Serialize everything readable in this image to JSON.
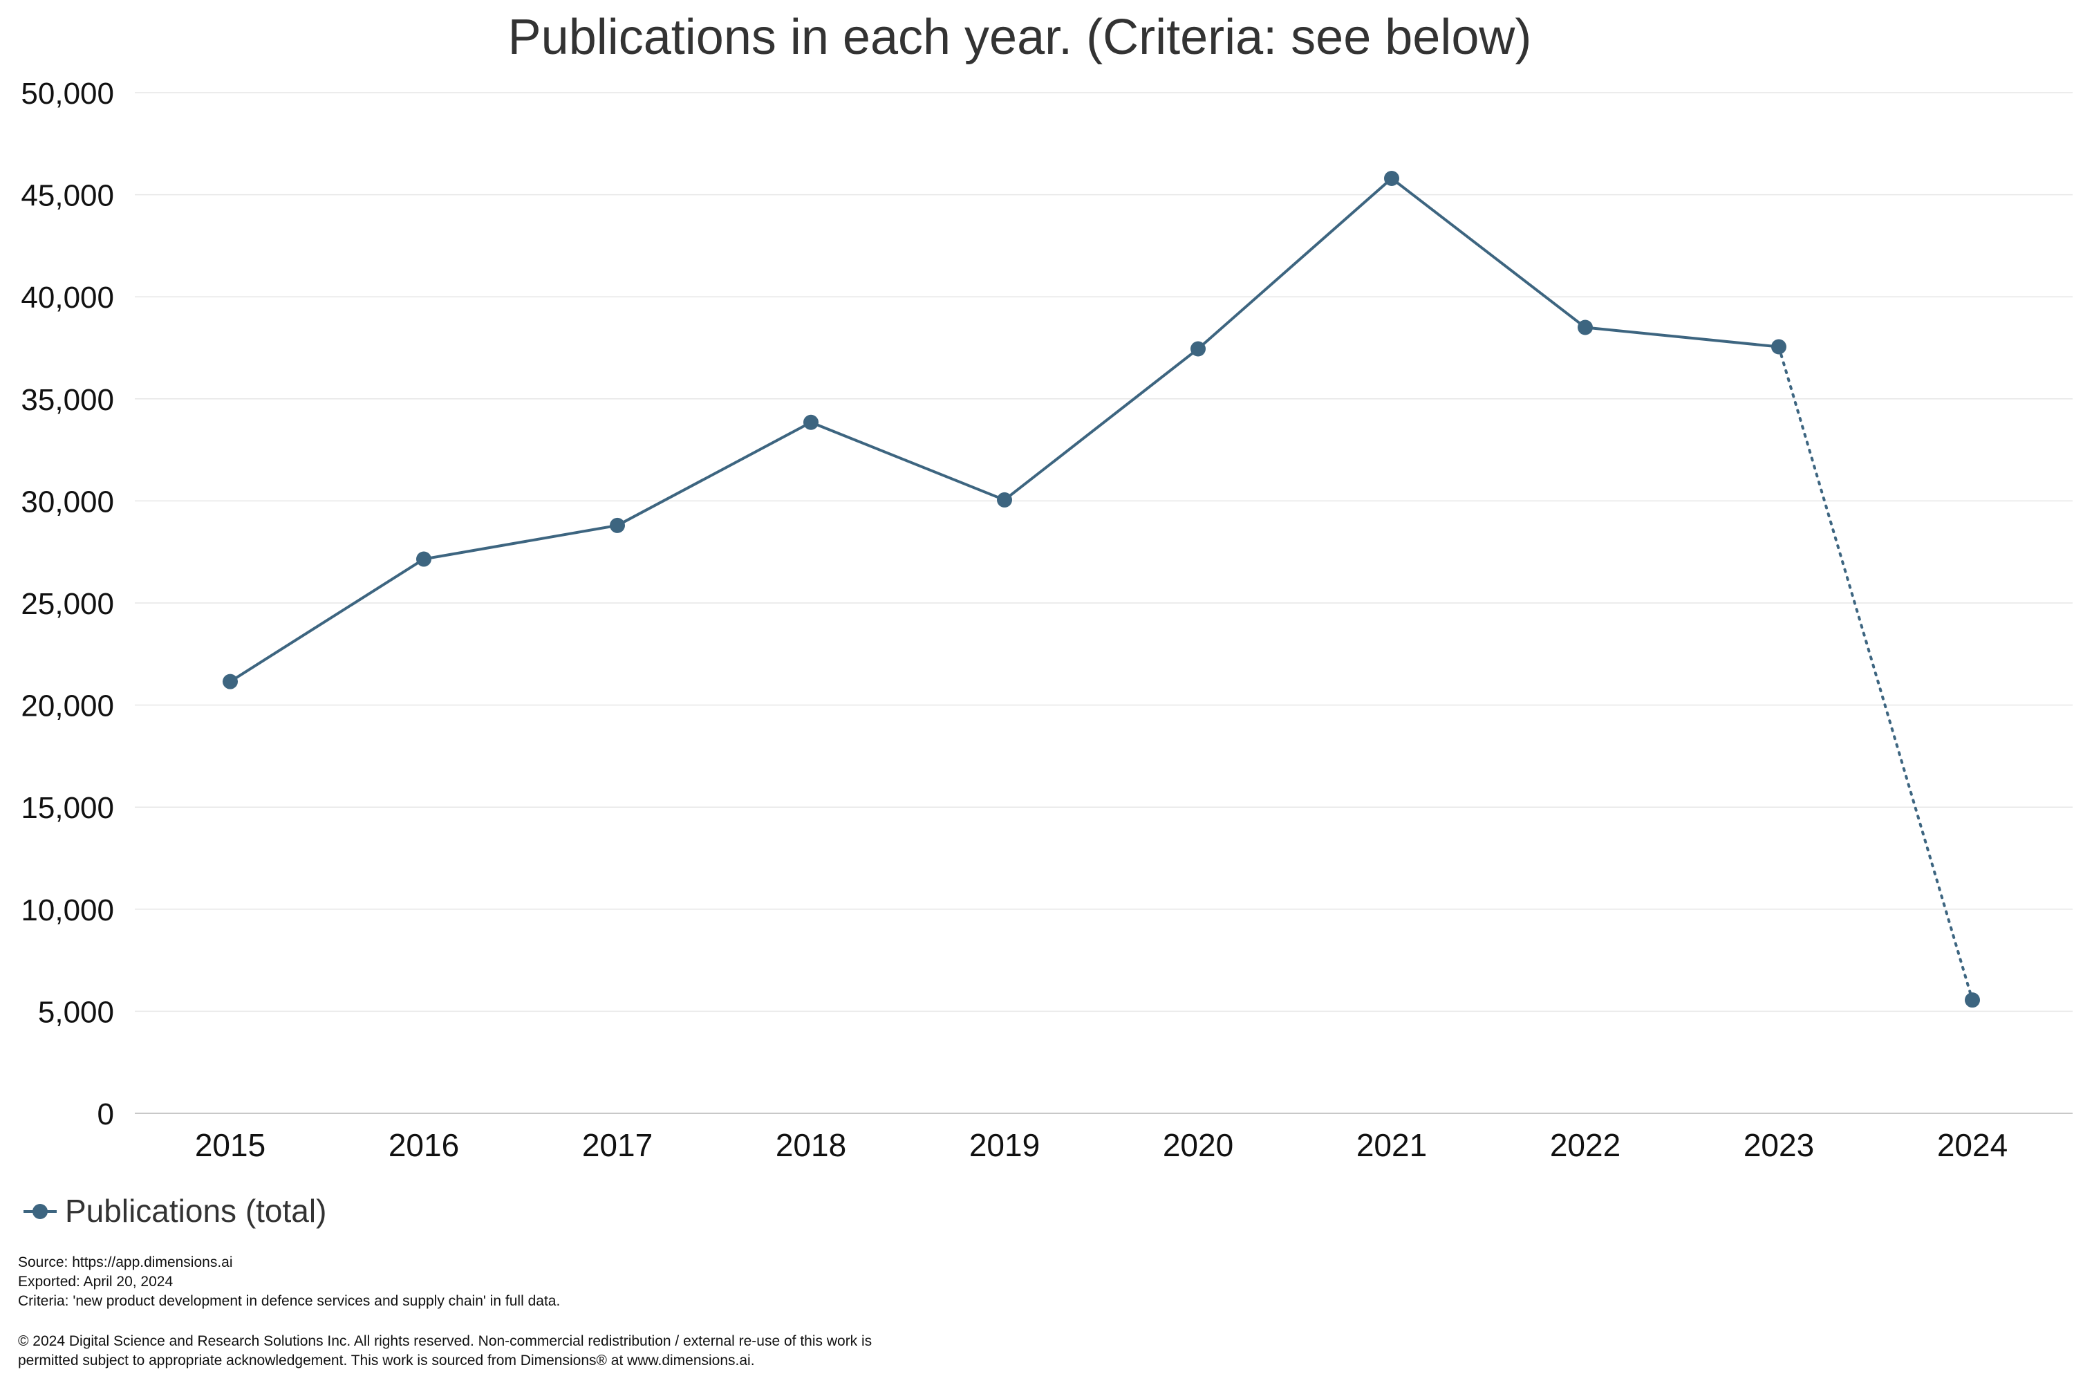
{
  "chart_data": {
    "type": "line",
    "title": "Publications in each year. (Criteria: see below)",
    "xlabel": "",
    "ylabel": "",
    "categories": [
      "2015",
      "2016",
      "2017",
      "2018",
      "2019",
      "2020",
      "2021",
      "2022",
      "2023",
      "2024"
    ],
    "series": [
      {
        "name": "Publications (total)",
        "values": [
          21150,
          27150,
          28800,
          33850,
          30050,
          37450,
          45800,
          38500,
          37550,
          5550
        ],
        "color": "#3d6580",
        "note_style": "solid through 2023, dotted from 2023 to 2024"
      }
    ],
    "ylim": [
      0,
      50000
    ],
    "yticks": [
      0,
      5000,
      10000,
      15000,
      20000,
      25000,
      30000,
      35000,
      40000,
      45000,
      50000
    ],
    "ytick_labels": [
      "0",
      "5,000",
      "10,000",
      "15,000",
      "20,000",
      "25,000",
      "30,000",
      "35,000",
      "40,000",
      "45,000",
      "50,000"
    ],
    "grid": true,
    "legend_position": "bottom-left"
  },
  "footer": {
    "source": "Source: https://app.dimensions.ai",
    "exported": "Exported: April 20, 2024",
    "criteria": "Criteria: 'new product development in defence services and supply chain' in full data.",
    "copyright_line1": "© 2024 Digital Science and Research Solutions Inc. All rights reserved. Non-commercial redistribution / external re-use of this work is",
    "copyright_line2": "permitted subject to appropriate acknowledgement. This work is sourced from Dimensions® at www.dimensions.ai."
  }
}
